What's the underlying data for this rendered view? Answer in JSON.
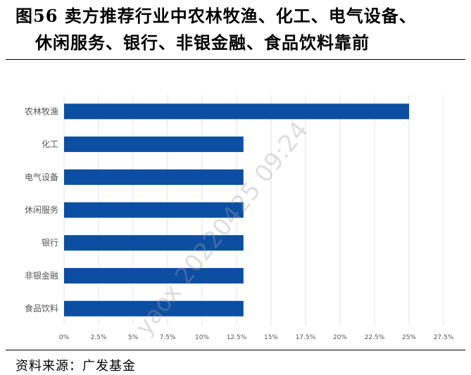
{
  "title": {
    "line1": "图56  卖方推荐行业中农林牧渔、化工、电气设备、",
    "line2": "休闲服务、银行、非银金融、食品饮料靠前"
  },
  "source": "资料来源：广发基金",
  "watermark": "yaox 20220425 09:24",
  "chart_data": {
    "type": "bar",
    "orientation": "horizontal",
    "categories": [
      "农林牧渔",
      "化工",
      "电气设备",
      "休闲服务",
      "银行",
      "非银金融",
      "食品饮料"
    ],
    "values": [
      25,
      13,
      13,
      13,
      13,
      13,
      13
    ],
    "xlim": [
      0,
      27.5
    ],
    "xticks": [
      0,
      2.5,
      5,
      7.5,
      10,
      12.5,
      15,
      17.5,
      20,
      22.5,
      25,
      27.5
    ],
    "xtick_labels": [
      "0%",
      "2.5%",
      "5%",
      "7.5%",
      "10%",
      "12.5%",
      "15%",
      "17.5%",
      "20%",
      "22.5%",
      "25%",
      "27.5%"
    ],
    "bar_color": "#0b4ea2",
    "grid": true,
    "legend": "none"
  }
}
